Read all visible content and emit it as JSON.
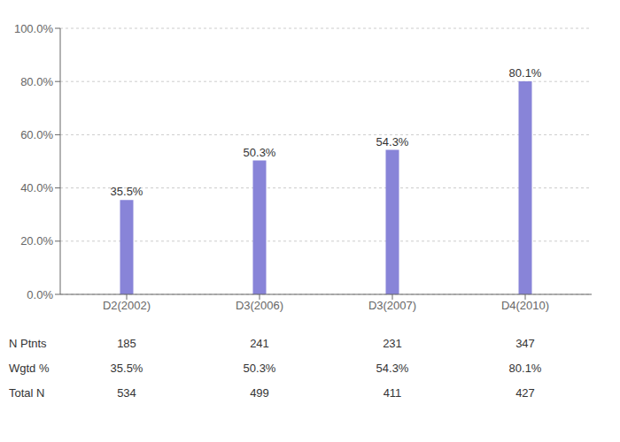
{
  "chart_data": {
    "type": "bar",
    "categories": [
      "D2(2002)",
      "D3(2006)",
      "D3(2007)",
      "D4(2010)"
    ],
    "values": [
      35.5,
      50.3,
      54.3,
      80.1
    ],
    "value_labels": [
      "35.5%",
      "50.3%",
      "54.3%",
      "80.1%"
    ],
    "data_labels": true,
    "color": "#8884d8",
    "ylim": [
      0,
      100
    ],
    "yticks": [
      {
        "value": 0,
        "label": "0.0%"
      },
      {
        "value": 20,
        "label": "20.0%"
      },
      {
        "value": 40,
        "label": "40.0%"
      },
      {
        "value": 60,
        "label": "60.0%"
      },
      {
        "value": 80,
        "label": "80.0%"
      },
      {
        "value": 100,
        "label": "100.0%"
      }
    ],
    "grid": true,
    "table": [
      {
        "label": "N Ptnts",
        "values": [
          "185",
          "241",
          "231",
          "347"
        ]
      },
      {
        "label": "Wgtd %",
        "values": [
          "35.5%",
          "50.3%",
          "54.3%",
          "80.1%"
        ]
      },
      {
        "label": "Total N",
        "values": [
          "534",
          "499",
          "411",
          "427"
        ]
      }
    ]
  }
}
